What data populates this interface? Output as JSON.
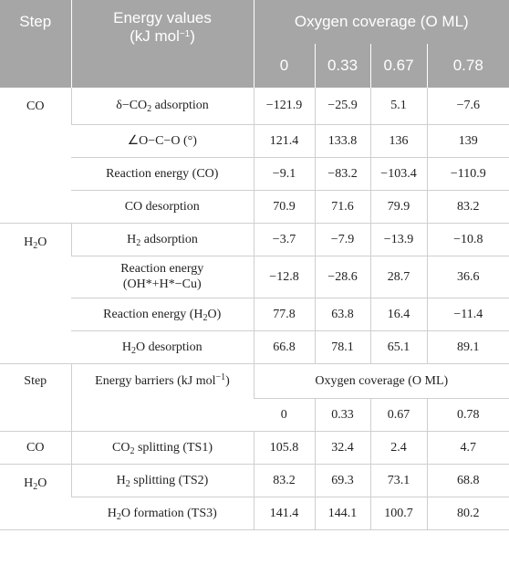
{
  "header": {
    "step": "Step",
    "energy_values": "Energy values",
    "energy_units_pre": "(kJ mol",
    "energy_units_sup": "−1",
    "energy_units_post": ")",
    "oxygen_coverage": "Oxygen coverage (O ML)",
    "coverages": [
      "0",
      "0.33",
      "0.67",
      "0.78"
    ]
  },
  "co_group": {
    "step": "CO",
    "rows": [
      {
        "label_pre": "δ−CO",
        "label_sub": "2",
        "label_post": " adsorption",
        "values": [
          "−121.9",
          "−25.9",
          "5.1",
          "−7.6"
        ]
      },
      {
        "label": "∠O−C−O (°)",
        "values": [
          "121.4",
          "133.8",
          "136",
          "139"
        ]
      },
      {
        "label": "Reaction energy (CO)",
        "values": [
          "−9.1",
          "−83.2",
          "−103.4",
          "−110.9"
        ]
      },
      {
        "label": "CO desorption",
        "values": [
          "70.9",
          "71.6",
          "79.9",
          "83.2"
        ]
      }
    ]
  },
  "h2o_group": {
    "step_pre": "H",
    "step_sub": "2",
    "step_post": "O",
    "rows": [
      {
        "label_pre": "H",
        "label_sub": "2",
        "label_post": " adsorption",
        "values": [
          "−3.7",
          "−7.9",
          "−13.9",
          "−10.8"
        ]
      },
      {
        "label_line1": "Reaction energy",
        "label_line2": "(OH*+H*−Cu)",
        "values": [
          "−12.8",
          "−28.6",
          "28.7",
          "36.6"
        ]
      },
      {
        "label_pre": "Reaction energy (H",
        "label_sub": "2",
        "label_post": "O)",
        "values": [
          "77.8",
          "63.8",
          "16.4",
          "−11.4"
        ]
      },
      {
        "label_pre": "H",
        "label_sub": "2",
        "label_post": "O desorption",
        "values": [
          "66.8",
          "78.1",
          "65.1",
          "89.1"
        ]
      }
    ]
  },
  "barrier_header": {
    "step": "Step",
    "energy_barriers_pre": "Energy barriers (kJ mol",
    "energy_barriers_sup": "−1",
    "energy_barriers_post": ")",
    "oxygen_coverage": "Oxygen coverage (O ML)",
    "coverages": [
      "0",
      "0.33",
      "0.67",
      "0.78"
    ]
  },
  "barrier_co": {
    "step": "CO",
    "label_pre": "CO",
    "label_sub": "2",
    "label_post": " splitting (TS1)",
    "values": [
      "105.8",
      "32.4",
      "2.4",
      "4.7"
    ]
  },
  "barrier_h2o": {
    "step_pre": "H",
    "step_sub": "2",
    "step_post": "O",
    "rows": [
      {
        "label_pre": "H",
        "label_sub": "2",
        "label_post": " splitting (TS2)",
        "values": [
          "83.2",
          "69.3",
          "73.1",
          "68.8"
        ]
      },
      {
        "label_pre": "H",
        "label_sub": "2",
        "label_post": "O formation (TS3)",
        "values": [
          "141.4",
          "144.1",
          "100.7",
          "80.2"
        ]
      }
    ]
  }
}
